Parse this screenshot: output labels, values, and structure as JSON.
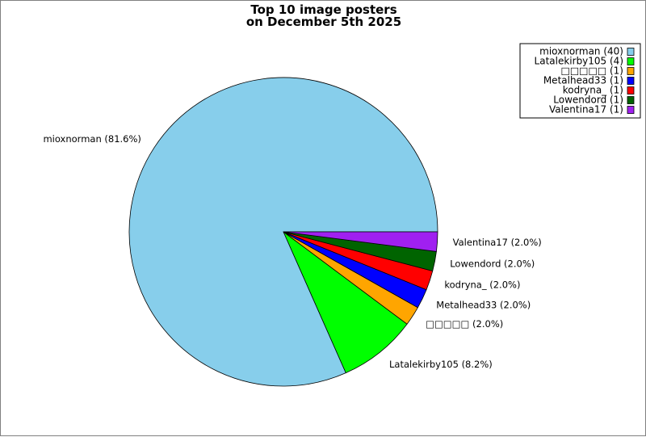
{
  "chart_data": {
    "type": "pie",
    "title": "Top 10 image posters\non December 5th 2025",
    "labels": [
      "mioxnorman",
      "Latalekirby105",
      "□□□□□",
      "Metalhead33",
      "kodryna_",
      "Lowendord",
      "Valentina17"
    ],
    "values": [
      40,
      4,
      1,
      1,
      1,
      1,
      1
    ],
    "percent_labels": [
      "mioxnorman (81.6%)",
      "Latalekirby105 (8.2%)",
      "□□□□□ (2.0%)",
      "Metalhead33 (2.0%)",
      "kodryna_ (2.0%)",
      "Lowendord (2.0%)",
      "Valentina17 (2.0%)"
    ],
    "legend_entries": [
      "mioxnorman (40)",
      "Latalekirby105 (4)",
      "□□□□□ (1)",
      "Metalhead33 (1)",
      "kodryna_ (1)",
      "Lowendord (1)",
      "Valentina17 (1)"
    ],
    "colors": [
      "#87ceeb",
      "#00ff00",
      "#ffa500",
      "#0000ff",
      "#ff0000",
      "#006400",
      "#a020f0"
    ],
    "legend_position": "top-right"
  }
}
